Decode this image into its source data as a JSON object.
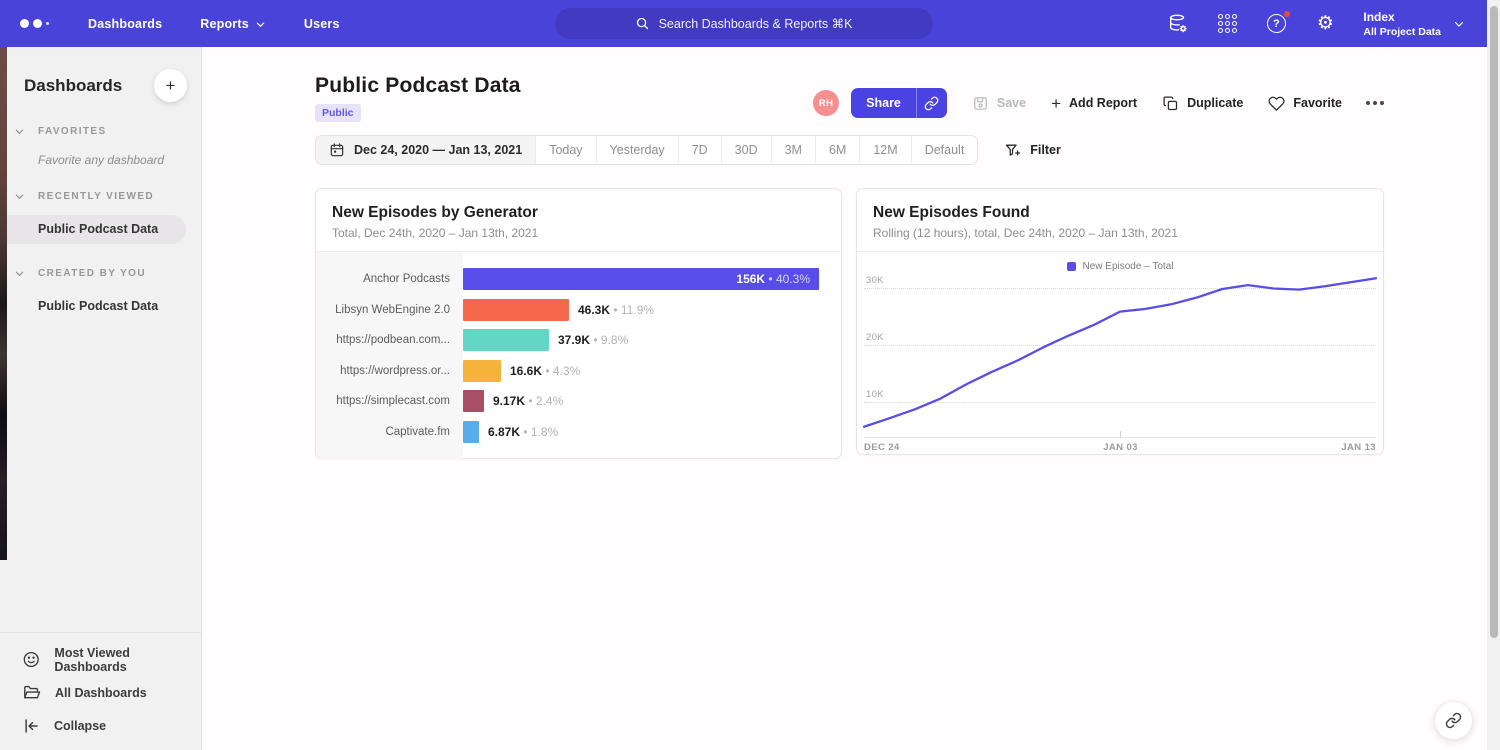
{
  "nav": {
    "menu": [
      {
        "label": "Dashboards",
        "has_dropdown": false
      },
      {
        "label": "Reports",
        "has_dropdown": true
      },
      {
        "label": "Users",
        "has_dropdown": false
      }
    ],
    "search_placeholder": "Search Dashboards & Reports ⌘K",
    "help_glyph": "?",
    "project": {
      "name": "Index",
      "scope": "All Project Data"
    }
  },
  "sidebar": {
    "title": "Dashboards",
    "sections": {
      "favorites": {
        "label": "FAVORITES",
        "empty_text": "Favorite any dashboard"
      },
      "recent": {
        "label": "RECENTLY VIEWED",
        "item": "Public Podcast Data"
      },
      "created": {
        "label": "CREATED BY YOU",
        "item": "Public Podcast Data"
      }
    },
    "footer": {
      "most_viewed": "Most Viewed Dashboards",
      "all_dashboards": "All Dashboards",
      "collapse": "Collapse"
    }
  },
  "header": {
    "title": "Public Podcast Data",
    "badge": "Public",
    "avatar_initials": "RH",
    "share_label": "Share",
    "save_label": "Save",
    "add_report_label": "Add Report",
    "add_report_plus": "+",
    "duplicate_label": "Duplicate",
    "favorite_label": "Favorite"
  },
  "date_bar": {
    "range": "Dec 24, 2020 — Jan 13, 2021",
    "presets": [
      "Today",
      "Yesterday",
      "7D",
      "30D",
      "3M",
      "6M",
      "12M",
      "Default"
    ],
    "filter_label": "Filter"
  },
  "chart_data": [
    {
      "type": "bar",
      "orientation": "horizontal",
      "title": "New Episodes by Generator",
      "subtitle": "Total, Dec 24th, 2020 – Jan 13th, 2021",
      "categories": [
        "Anchor Podcasts",
        "Libsyn WebEngine 2.0",
        "https://podbean.com...",
        "https://wordpress.or...",
        "https://simplecast.com",
        "Captivate.fm"
      ],
      "values": [
        156000,
        46300,
        37900,
        16600,
        9170,
        6870
      ],
      "value_labels": [
        "156K",
        "46.3K",
        "37.9K",
        "16.6K",
        "9.17K",
        "6.87K"
      ],
      "pct_labels": [
        "40.3%",
        "11.9%",
        "9.8%",
        "4.3%",
        "2.4%",
        "1.8%"
      ],
      "colors": [
        "#584de8",
        "#f6684c",
        "#63d7c4",
        "#f5b33c",
        "#a84f63",
        "#57ace9"
      ],
      "xmax": 156000
    },
    {
      "type": "line",
      "title": "New Episodes Found",
      "subtitle": "Rolling (12 hours), total, Dec 24th, 2020 – Jan 13th, 2021",
      "legend": [
        {
          "label": "New Episode – Total",
          "color": "#584de8"
        }
      ],
      "line_color": "#584de8",
      "y_ticks": [
        {
          "label": "10K",
          "value": 10000
        },
        {
          "label": "20K",
          "value": 20000
        },
        {
          "label": "30K",
          "value": 30000
        }
      ],
      "x_ticks": [
        "DEC 24",
        "JAN 03",
        "JAN 13"
      ],
      "ylim": [
        0,
        33000
      ],
      "grid": true,
      "legend_position": "top-center",
      "values": [
        5500,
        7000,
        8600,
        10500,
        13000,
        15200,
        17200,
        19500,
        21600,
        23500,
        25800,
        26300,
        27100,
        28300,
        29800,
        30500,
        29900,
        29700,
        30300,
        31000,
        31700
      ]
    }
  ]
}
